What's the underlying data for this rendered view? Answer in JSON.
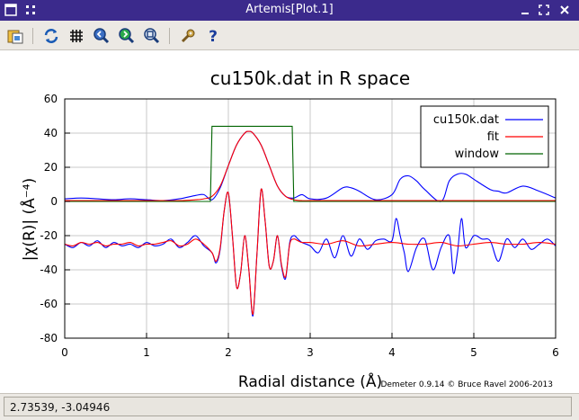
{
  "window": {
    "title": "Artemis[Plot.1]"
  },
  "titlebar_icons": [
    "window-menu-icon",
    "pin-icon",
    "minimize-icon",
    "maximize-icon",
    "close-icon"
  ],
  "toolbar": {
    "tools": [
      "save-icon",
      "refresh-icon",
      "grid-icon",
      "zoom-in-icon",
      "zoom-out-icon",
      "zoom-reset-icon",
      "settings-icon",
      "help-icon"
    ]
  },
  "status": {
    "coordinates": "2.73539, -3.04946"
  },
  "chart_data": {
    "type": "line",
    "title": "cu150k.dat in R space",
    "xlabel": "Radial distance   (Å)",
    "ylabel": "|χ(R)|   (Å⁻⁴)",
    "xlim": [
      0,
      6
    ],
    "ylim": [
      -80,
      60
    ],
    "xticks": [
      "0",
      "1",
      "2",
      "3",
      "4",
      "5",
      "6"
    ],
    "yticks": [
      "60",
      "40",
      "20",
      "0",
      "-20",
      "-40",
      "-60",
      "-80"
    ],
    "grid": true,
    "legend_position": "top-right",
    "credit": "Demeter 0.9.14 © Bruce Ravel 2006-2013",
    "colors": {
      "data": "#0000ff",
      "fit": "#ff0000",
      "window": "#006400"
    },
    "series": [
      {
        "name": "cu150k.dat",
        "x": [
          0,
          0.2,
          0.4,
          0.6,
          0.8,
          1.0,
          1.2,
          1.4,
          1.6,
          1.7,
          1.8,
          1.9,
          2.0,
          2.1,
          2.2,
          2.25,
          2.3,
          2.4,
          2.5,
          2.6,
          2.7,
          2.8,
          2.9,
          3.0,
          3.2,
          3.4,
          3.5,
          3.6,
          3.8,
          4.0,
          4.1,
          4.2,
          4.3,
          4.4,
          4.6,
          4.7,
          4.8,
          4.9,
          5.0,
          5.2,
          5.3,
          5.4,
          5.6,
          5.8,
          6.0
        ],
        "y": [
          1.5,
          2,
          1.5,
          1,
          1.5,
          1,
          0.5,
          1.5,
          3.5,
          4,
          1,
          8,
          21,
          33,
          40,
          41,
          40,
          33,
          21,
          9,
          3,
          2,
          4,
          1.5,
          2,
          8,
          8,
          6,
          1,
          4,
          13,
          15,
          12,
          7,
          0,
          12,
          16,
          16,
          13,
          7,
          6,
          5,
          9,
          6,
          2
        ]
      },
      {
        "name": "fit",
        "x": [
          0,
          0.2,
          0.4,
          0.6,
          0.8,
          1.0,
          1.2,
          1.4,
          1.6,
          1.7,
          1.8,
          1.9,
          2.0,
          2.1,
          2.2,
          2.25,
          2.3,
          2.4,
          2.5,
          2.6,
          2.7,
          2.8,
          2.9,
          3.0,
          3.2,
          3.4,
          3.6,
          3.8,
          4.0,
          4.2,
          4.4,
          4.6,
          4.8,
          5.0,
          5.2,
          5.4,
          5.6,
          5.8,
          6.0
        ],
        "y": [
          0.5,
          0.5,
          0.5,
          0.5,
          0.5,
          0.5,
          0.5,
          0.5,
          1,
          1.5,
          3,
          9,
          21,
          33,
          40,
          41,
          40,
          33,
          21,
          9,
          3,
          1,
          0.5,
          0.5,
          0.5,
          0.5,
          0.5,
          0.5,
          0.5,
          0.5,
          0.5,
          0.5,
          0.5,
          0.5,
          0.5,
          0.5,
          0.5,
          0.5,
          0.5
        ]
      },
      {
        "name": "window",
        "x": [
          0,
          1.78,
          1.8,
          2.78,
          2.8,
          6.0
        ],
        "y": [
          0,
          0,
          44,
          44,
          0,
          0
        ]
      },
      {
        "name": "",
        "x": [
          0,
          0.1,
          0.2,
          0.3,
          0.4,
          0.5,
          0.6,
          0.7,
          0.8,
          0.9,
          1.0,
          1.1,
          1.2,
          1.3,
          1.4,
          1.5,
          1.6,
          1.7,
          1.8,
          1.85,
          1.9,
          1.95,
          2.0,
          2.05,
          2.1,
          2.15,
          2.2,
          2.25,
          2.3,
          2.35,
          2.4,
          2.45,
          2.5,
          2.55,
          2.6,
          2.65,
          2.7,
          2.75,
          2.8,
          2.85,
          2.9,
          3.0,
          3.1,
          3.2,
          3.3,
          3.4,
          3.5,
          3.6,
          3.7,
          3.8,
          3.9,
          4.0,
          4.05,
          4.1,
          4.15,
          4.2,
          4.3,
          4.4,
          4.5,
          4.6,
          4.7,
          4.75,
          4.8,
          4.85,
          4.9,
          5.0,
          5.1,
          5.2,
          5.3,
          5.4,
          5.5,
          5.6,
          5.7,
          5.8,
          5.9,
          6.0
        ],
        "y": [
          -25,
          -27,
          -24,
          -26,
          -23,
          -27,
          -24,
          -26,
          -25,
          -27,
          -24,
          -26,
          -25,
          -22,
          -27,
          -24,
          -20,
          -26,
          -30,
          -36,
          -28,
          -5,
          5,
          -20,
          -50,
          -42,
          -20,
          -40,
          -67,
          -30,
          7,
          -12,
          -38,
          -35,
          -20,
          -38,
          -45,
          -24,
          -20,
          -22,
          -24,
          -26,
          -30,
          -22,
          -33,
          -20,
          -32,
          -22,
          -28,
          -23,
          -22,
          -23,
          -10,
          -20,
          -30,
          -41,
          -27,
          -22,
          -40,
          -27,
          -20,
          -42,
          -30,
          -10,
          -27,
          -20,
          -22,
          -23,
          -35,
          -22,
          -27,
          -22,
          -28,
          -25,
          -22,
          -26
        ]
      },
      {
        "name": "",
        "x": [
          0,
          0.1,
          0.2,
          0.3,
          0.4,
          0.5,
          0.6,
          0.7,
          0.8,
          0.9,
          1.0,
          1.1,
          1.2,
          1.3,
          1.4,
          1.5,
          1.6,
          1.7,
          1.8,
          1.85,
          1.9,
          1.95,
          2.0,
          2.05,
          2.1,
          2.15,
          2.2,
          2.25,
          2.3,
          2.35,
          2.4,
          2.45,
          2.5,
          2.55,
          2.6,
          2.65,
          2.7,
          2.75,
          2.8,
          2.85,
          2.9,
          3.0,
          3.2,
          3.4,
          3.6,
          3.8,
          4.0,
          4.2,
          4.4,
          4.6,
          4.8,
          5.0,
          5.2,
          5.4,
          5.6,
          5.8,
          6.0
        ],
        "y": [
          -25,
          -26,
          -24,
          -25,
          -24,
          -26,
          -25,
          -25,
          -24,
          -26,
          -25,
          -25,
          -24,
          -23,
          -26,
          -25,
          -22,
          -25,
          -30,
          -35,
          -27,
          -5,
          5,
          -20,
          -50,
          -42,
          -20,
          -40,
          -66,
          -30,
          7,
          -12,
          -38,
          -35,
          -20,
          -37,
          -44,
          -25,
          -22,
          -23,
          -24,
          -24,
          -25,
          -23,
          -26,
          -25,
          -24,
          -25,
          -25,
          -24,
          -26,
          -25,
          -24,
          -25,
          -25,
          -24,
          -25
        ]
      }
    ]
  }
}
